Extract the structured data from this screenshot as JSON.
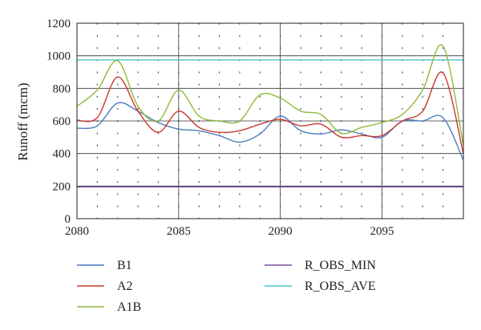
{
  "chart_data": {
    "type": "line",
    "ylabel": "Runoff (mcm)",
    "xlabel": "",
    "xlim": [
      2080,
      2099
    ],
    "ylim": [
      0,
      1200
    ],
    "x_ticks": [
      2080,
      2085,
      2090,
      2095
    ],
    "y_ticks": [
      0,
      200,
      400,
      600,
      800,
      1000,
      1200
    ],
    "grid": "dotted minor grid, solid major grid",
    "legend_position": "bottom",
    "x": [
      2080,
      2081,
      2082,
      2083,
      2084,
      2085,
      2086,
      2087,
      2088,
      2089,
      2090,
      2091,
      2092,
      2093,
      2094,
      2095,
      2096,
      2097,
      2098,
      2099
    ],
    "series": [
      {
        "name": "B1",
        "color": "#4a7cc0",
        "values": [
          555,
          570,
          710,
          660,
          590,
          550,
          540,
          510,
          470,
          520,
          630,
          540,
          520,
          545,
          520,
          500,
          600,
          600,
          620,
          360
        ]
      },
      {
        "name": "A2",
        "color": "#c8382e",
        "values": [
          605,
          620,
          870,
          660,
          530,
          660,
          560,
          530,
          540,
          580,
          610,
          570,
          580,
          500,
          510,
          510,
          600,
          660,
          895,
          400
        ]
      },
      {
        "name": "A1B",
        "color": "#8dba3c",
        "values": [
          690,
          790,
          970,
          690,
          600,
          790,
          630,
          600,
          600,
          760,
          740,
          660,
          640,
          525,
          560,
          590,
          640,
          790,
          1060,
          450
        ]
      },
      {
        "name": "R_OBS_MIN",
        "color": "#7a4fa0",
        "values": [
          195,
          195,
          195,
          195,
          195,
          195,
          195,
          195,
          195,
          195,
          195,
          195,
          195,
          195,
          195,
          195,
          195,
          195,
          195,
          195
        ]
      },
      {
        "name": "R_OBS_AVE",
        "color": "#4fc4cf",
        "values": [
          975,
          975,
          975,
          975,
          975,
          975,
          975,
          975,
          975,
          975,
          975,
          975,
          975,
          975,
          975,
          975,
          975,
          975,
          975,
          975
        ]
      }
    ],
    "legend_order": [
      "B1",
      "A2",
      "A1B",
      "R_OBS_MIN",
      "R_OBS_AVE"
    ]
  }
}
